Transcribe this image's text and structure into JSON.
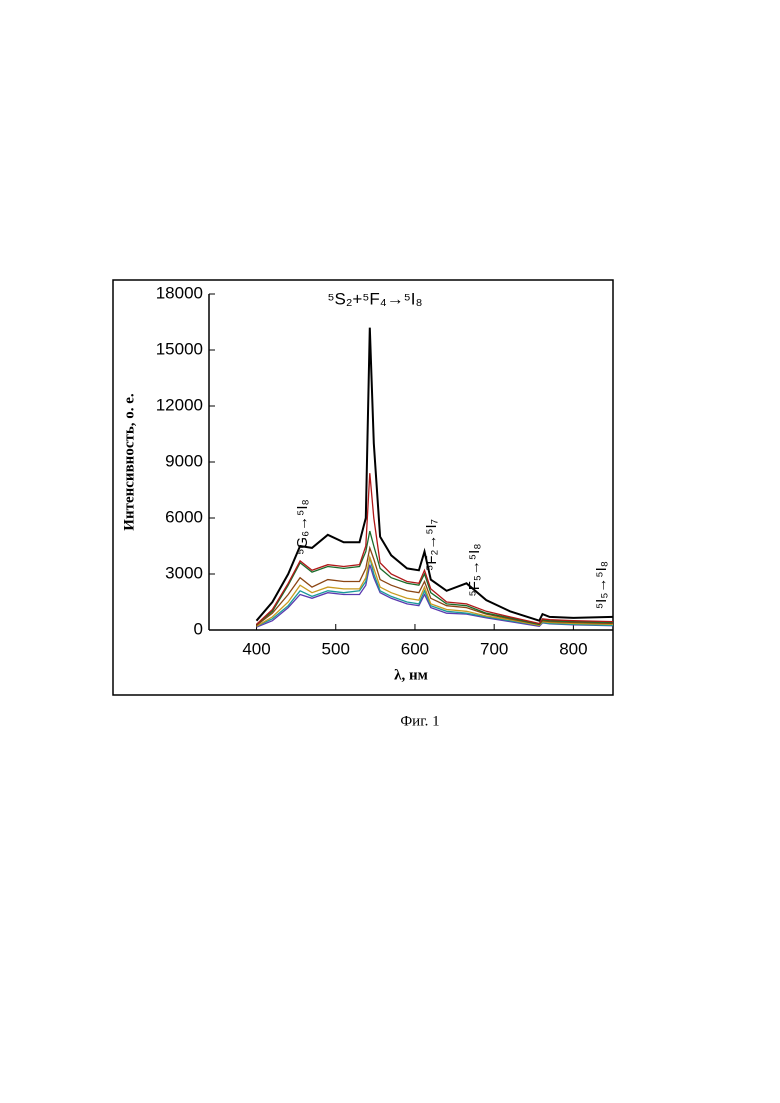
{
  "chart_data": {
    "type": "line",
    "x_label": "λ, нм",
    "y_label": "Интенсивность, о. е.",
    "annotations": [
      "⁵S₂+⁵F₄→⁵I₈",
      "⁵G₆→⁵I₈",
      "⁵F₂→⁵I₇",
      "⁵F₅→⁵I₈",
      "⁵I₅→⁵I₈"
    ],
    "caption": "Фиг. 1",
    "x": [
      400,
      420,
      440,
      455,
      470,
      490,
      510,
      530,
      538,
      543,
      548,
      556,
      570,
      590,
      605,
      612,
      620,
      640,
      665,
      690,
      720,
      757,
      761,
      770,
      800,
      850
    ],
    "series": [
      {
        "color": "#000000",
        "values": [
          500,
          1500,
          3000,
          4500,
          4400,
          5100,
          4700,
          4700,
          6000,
          16200,
          10000,
          5000,
          4000,
          3300,
          3200,
          4200,
          2700,
          2100,
          2500,
          1600,
          1000,
          500,
          850,
          700,
          650,
          700
        ]
      },
      {
        "color": "#b01818",
        "values": [
          300,
          1100,
          2500,
          3700,
          3200,
          3500,
          3400,
          3500,
          4500,
          8400,
          6000,
          3600,
          3000,
          2600,
          2500,
          3200,
          2200,
          1500,
          1400,
          1000,
          700,
          350,
          600,
          550,
          500,
          450
        ]
      },
      {
        "color": "#1a6b2a",
        "values": [
          300,
          1000,
          2400,
          3600,
          3100,
          3400,
          3300,
          3400,
          4200,
          5300,
          4500,
          3300,
          2800,
          2500,
          2400,
          3000,
          2000,
          1400,
          1300,
          900,
          650,
          300,
          550,
          500,
          450,
          400
        ]
      },
      {
        "color": "#8b4513",
        "values": [
          250,
          900,
          1900,
          2800,
          2300,
          2700,
          2600,
          2600,
          3300,
          4400,
          3800,
          2700,
          2400,
          2100,
          2000,
          2600,
          1700,
          1300,
          1200,
          850,
          600,
          300,
          500,
          450,
          400,
          350
        ]
      },
      {
        "color": "#c89a20",
        "values": [
          200,
          700,
          1500,
          2400,
          2000,
          2300,
          2200,
          2200,
          2800,
          3900,
          3300,
          2300,
          2000,
          1700,
          1600,
          2300,
          1400,
          1100,
          1000,
          750,
          550,
          250,
          450,
          400,
          350,
          300
        ]
      },
      {
        "color": "#1a9a9a",
        "values": [
          200,
          600,
          1300,
          2100,
          1800,
          2100,
          2000,
          2100,
          2600,
          3900,
          3000,
          2100,
          1800,
          1500,
          1400,
          2100,
          1300,
          1000,
          900,
          700,
          500,
          250,
          400,
          350,
          300,
          250
        ]
      },
      {
        "color": "#5a3ab0",
        "values": [
          150,
          500,
          1200,
          1900,
          1700,
          2000,
          1900,
          1900,
          2400,
          3500,
          2800,
          2000,
          1700,
          1400,
          1300,
          1900,
          1200,
          900,
          850,
          650,
          450,
          200,
          380,
          330,
          280,
          230
        ]
      }
    ],
    "xlim": [
      340,
      850
    ],
    "ylim": [
      0,
      18000
    ],
    "xticks": [
      400,
      500,
      600,
      700,
      800
    ],
    "yticks": [
      0,
      3000,
      6000,
      9000,
      12000,
      15000,
      18000
    ]
  }
}
